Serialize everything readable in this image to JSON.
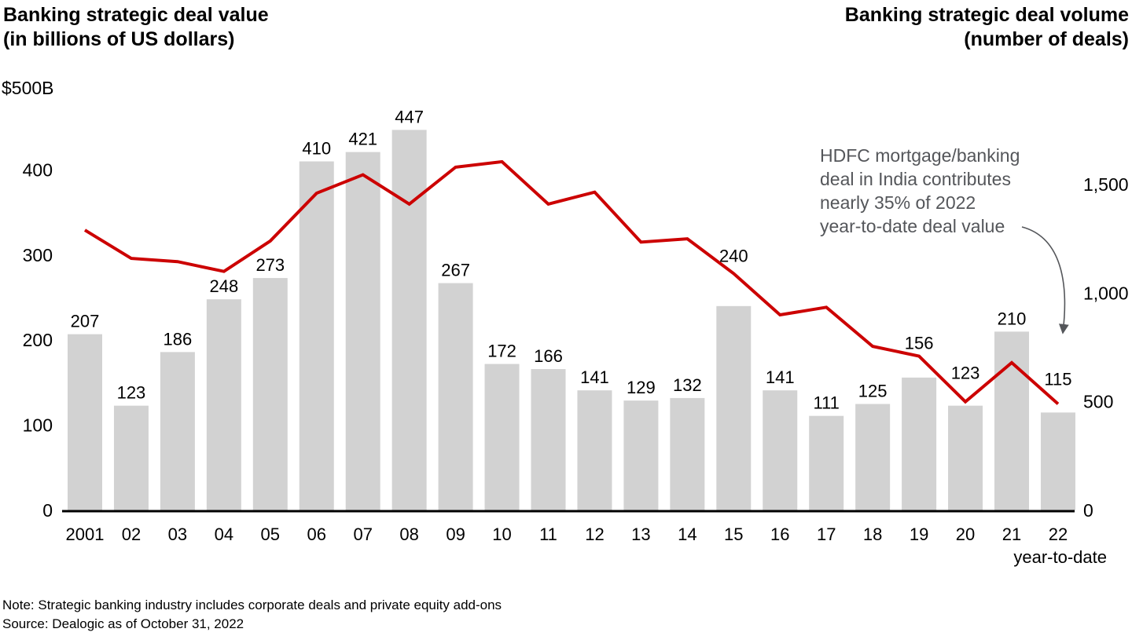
{
  "header": {
    "left_title_line1": "Banking strategic deal value",
    "left_title_line2": "(in billions of US dollars)",
    "right_title_line1": "Banking strategic deal volume",
    "right_title_line2": "(number of deals)"
  },
  "annotation": {
    "lines": [
      "HDFC mortgage/banking",
      "deal in India contributes",
      "nearly 35% of 2022",
      "year-to-date deal value"
    ]
  },
  "footer": {
    "note": "Note: Strategic banking industry includes corporate deals and private equity add-ons",
    "source": "Source: Dealogic as of October 31, 2022"
  },
  "colors": {
    "bar": "#d2d2d2",
    "line": "#cc0000",
    "annotation": "#54565a",
    "axis": "#000000"
  },
  "chart_data": {
    "type": "bar",
    "subtype": "bar-with-line-overlay",
    "title_left": "Banking strategic deal value (in billions of US dollars)",
    "title_right": "Banking strategic deal volume (number of deals)",
    "categories": [
      "2001",
      "02",
      "03",
      "04",
      "05",
      "06",
      "07",
      "08",
      "09",
      "10",
      "11",
      "12",
      "13",
      "14",
      "15",
      "16",
      "17",
      "18",
      "19",
      "20",
      "21",
      "22"
    ],
    "last_category_note": "year-to-date",
    "series": [
      {
        "name": "Banking strategic deal value ($B)",
        "type": "bar",
        "axis": "left",
        "values": [
          207,
          123,
          186,
          248,
          273,
          410,
          421,
          447,
          267,
          172,
          166,
          141,
          129,
          132,
          240,
          141,
          111,
          125,
          156,
          123,
          210,
          115
        ],
        "data_labels": [
          "207",
          "123",
          "186",
          "248",
          "273",
          "410",
          "421",
          "447",
          "267",
          "172",
          "166",
          "141",
          "129",
          "132",
          "240",
          "141",
          "111",
          "125",
          "156",
          "123",
          "210",
          "115"
        ]
      },
      {
        "name": "Banking strategic deal volume (number of deals)",
        "type": "line",
        "axis": "right",
        "values": [
          1290,
          1160,
          1145,
          1100,
          1240,
          1460,
          1545,
          1410,
          1580,
          1605,
          1410,
          1465,
          1235,
          1250,
          1090,
          900,
          935,
          755,
          710,
          500,
          680,
          490
        ]
      }
    ],
    "left_axis": {
      "top_label": "$500B",
      "ticks": [
        "400",
        "300",
        "200",
        "100",
        "0"
      ],
      "tick_values": [
        400,
        300,
        200,
        100,
        0
      ],
      "range": [
        0,
        500
      ],
      "grid": false
    },
    "right_axis": {
      "ticks": [
        "1,500",
        "1,000",
        "500",
        "0"
      ],
      "tick_values": [
        1500,
        1000,
        500,
        0
      ],
      "range": [
        0,
        1960
      ],
      "grid": false
    },
    "legend": "none"
  }
}
